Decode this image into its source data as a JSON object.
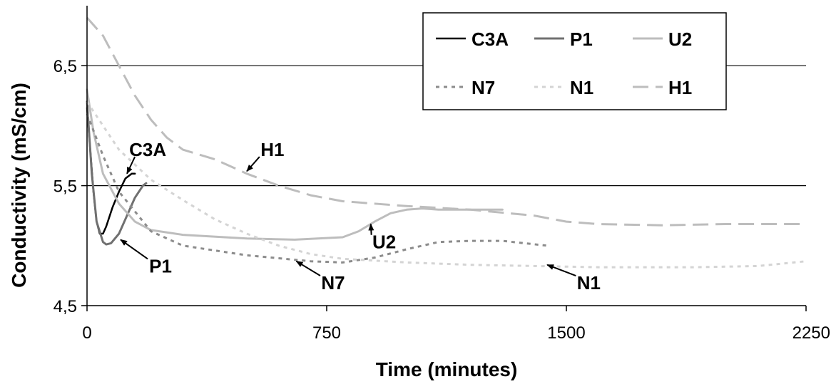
{
  "chart_data": {
    "type": "line",
    "xlabel": "Time (minutes)",
    "ylabel": "Conductivity (mS/cm)",
    "xlim": [
      0,
      2250
    ],
    "ylim": [
      4.5,
      7.0
    ],
    "x_ticks": [
      0,
      750,
      1500,
      2250
    ],
    "x_tick_labels": [
      "0",
      "750",
      "1500",
      "2250"
    ],
    "y_ticks": [
      4.5,
      5.5,
      6.5
    ],
    "y_tick_labels": [
      "4,5",
      "5,5",
      "6,5"
    ],
    "grid": "horizontal",
    "legend_position": "top-right",
    "series": [
      {
        "name": "C3A",
        "color": "#000000",
        "dash": "solid",
        "width": 2.5,
        "points": [
          [
            0,
            6.15
          ],
          [
            10,
            5.8
          ],
          [
            20,
            5.45
          ],
          [
            30,
            5.2
          ],
          [
            40,
            5.1
          ],
          [
            50,
            5.1
          ],
          [
            60,
            5.16
          ],
          [
            80,
            5.32
          ],
          [
            100,
            5.45
          ],
          [
            120,
            5.56
          ],
          [
            140,
            5.6
          ],
          [
            150,
            5.6
          ]
        ]
      },
      {
        "name": "P1",
        "color": "#707070",
        "dash": "solid",
        "width": 3,
        "points": [
          [
            0,
            6.2
          ],
          [
            15,
            5.6
          ],
          [
            30,
            5.2
          ],
          [
            50,
            5.03
          ],
          [
            60,
            5.01
          ],
          [
            75,
            5.02
          ],
          [
            100,
            5.1
          ],
          [
            125,
            5.25
          ],
          [
            150,
            5.4
          ],
          [
            175,
            5.5
          ],
          [
            185,
            5.52
          ]
        ]
      },
      {
        "name": "U2",
        "color": "#bdbdbd",
        "dash": "solid",
        "width": 3,
        "points": [
          [
            0,
            6.3
          ],
          [
            20,
            5.95
          ],
          [
            50,
            5.6
          ],
          [
            100,
            5.35
          ],
          [
            150,
            5.2
          ],
          [
            200,
            5.13
          ],
          [
            300,
            5.09
          ],
          [
            500,
            5.06
          ],
          [
            650,
            5.05
          ],
          [
            800,
            5.07
          ],
          [
            850,
            5.12
          ],
          [
            900,
            5.2
          ],
          [
            950,
            5.27
          ],
          [
            1000,
            5.3
          ],
          [
            1050,
            5.31
          ],
          [
            1100,
            5.3
          ],
          [
            1200,
            5.3
          ],
          [
            1300,
            5.3
          ]
        ]
      },
      {
        "name": "N7",
        "color": "#8c8c8c",
        "dash": "dotted",
        "width": 3,
        "points": [
          [
            0,
            6.1
          ],
          [
            50,
            5.75
          ],
          [
            100,
            5.45
          ],
          [
            200,
            5.12
          ],
          [
            300,
            5.0
          ],
          [
            500,
            4.92
          ],
          [
            700,
            4.87
          ],
          [
            800,
            4.86
          ],
          [
            900,
            4.9
          ],
          [
            1000,
            4.97
          ],
          [
            1100,
            5.03
          ],
          [
            1200,
            5.04
          ],
          [
            1300,
            5.04
          ],
          [
            1440,
            5.0
          ]
        ]
      },
      {
        "name": "N1",
        "color": "#d4d4d4",
        "dash": "dotted",
        "width": 3,
        "points": [
          [
            0,
            6.2
          ],
          [
            50,
            6.0
          ],
          [
            100,
            5.8
          ],
          [
            200,
            5.55
          ],
          [
            300,
            5.38
          ],
          [
            400,
            5.22
          ],
          [
            500,
            5.1
          ],
          [
            600,
            5.0
          ],
          [
            700,
            4.93
          ],
          [
            800,
            4.89
          ],
          [
            1000,
            4.86
          ],
          [
            1200,
            4.84
          ],
          [
            1400,
            4.83
          ],
          [
            1600,
            4.82
          ],
          [
            1900,
            4.82
          ],
          [
            2100,
            4.83
          ],
          [
            2250,
            4.87
          ]
        ]
      },
      {
        "name": "H1",
        "color": "#bdbdbd",
        "dash": "dashed",
        "width": 3,
        "points": [
          [
            0,
            6.9
          ],
          [
            50,
            6.75
          ],
          [
            100,
            6.5
          ],
          [
            150,
            6.25
          ],
          [
            200,
            6.05
          ],
          [
            250,
            5.9
          ],
          [
            300,
            5.8
          ],
          [
            400,
            5.72
          ],
          [
            500,
            5.6
          ],
          [
            600,
            5.5
          ],
          [
            700,
            5.42
          ],
          [
            800,
            5.37
          ],
          [
            1000,
            5.33
          ],
          [
            1200,
            5.3
          ],
          [
            1400,
            5.25
          ],
          [
            1500,
            5.2
          ],
          [
            1600,
            5.18
          ],
          [
            1800,
            5.17
          ],
          [
            2000,
            5.18
          ],
          [
            2250,
            5.18
          ]
        ]
      }
    ],
    "annotations": [
      {
        "text": "C3A",
        "x": 190,
        "y": 5.8,
        "arrow_to": [
          125,
          5.6
        ]
      },
      {
        "text": "H1",
        "x": 580,
        "y": 5.8,
        "arrow_to": [
          500,
          5.62
        ]
      },
      {
        "text": "P1",
        "x": 230,
        "y": 4.83,
        "arrow_to": [
          105,
          5.05
        ]
      },
      {
        "text": "U2",
        "x": 930,
        "y": 5.03,
        "arrow_to": [
          888,
          5.18
        ]
      },
      {
        "text": "N7",
        "x": 770,
        "y": 4.69,
        "arrow_to": [
          655,
          4.87
        ]
      },
      {
        "text": "N1",
        "x": 1570,
        "y": 4.69,
        "arrow_to": [
          1440,
          4.84
        ]
      }
    ]
  }
}
